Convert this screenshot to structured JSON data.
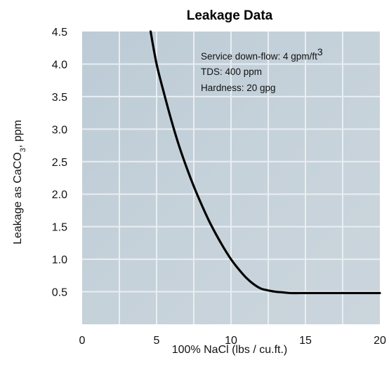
{
  "chart_data": {
    "type": "line",
    "title": "Leakage Data",
    "xlabel": "100% NaCl (lbs / cu.ft.)",
    "ylabel": {
      "prefix": "Leakage as CaCO",
      "subscript": "3",
      "suffix": ",  ppm"
    },
    "xlim": [
      0,
      20
    ],
    "ylim": [
      0,
      4.5
    ],
    "x_ticks": [
      "0",
      "5",
      "10",
      "15",
      "20"
    ],
    "y_ticks": [
      "0.5",
      "1.0",
      "1.5",
      "2.0",
      "2.5",
      "3.0",
      "3.5",
      "4.0",
      "4.5"
    ],
    "grid": true,
    "series": [
      {
        "x": [
          4.6,
          5.0,
          5.5,
          6.0,
          6.5,
          7.0,
          7.5,
          8.0,
          8.5,
          9.0,
          9.5,
          10.0,
          10.5,
          11.0,
          11.5,
          12.0,
          12.5,
          13.0,
          13.5,
          14.0,
          15.0,
          16.0,
          17.0,
          18.0,
          19.0,
          20.0
        ],
        "y": [
          4.5,
          4.0,
          3.55,
          3.13,
          2.75,
          2.42,
          2.12,
          1.85,
          1.6,
          1.38,
          1.18,
          1.0,
          0.85,
          0.72,
          0.62,
          0.55,
          0.52,
          0.5,
          0.49,
          0.48,
          0.48,
          0.48,
          0.48,
          0.48,
          0.48,
          0.48
        ],
        "color": "#000000"
      }
    ],
    "annotations": [
      {
        "prefix": "Service down-flow: 4 gpm/ft",
        "superscript": "3"
      },
      {
        "prefix": "TDS: 400 ppm"
      },
      {
        "prefix": "Hardness: 20 gpg"
      }
    ]
  },
  "colors": {
    "plot_bg": "#c4d0d8",
    "grid": "#e9eef2",
    "curve": "#000000"
  }
}
